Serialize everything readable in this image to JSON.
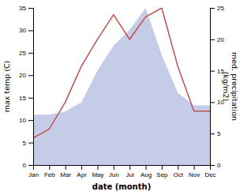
{
  "chart_data": {
    "type": "line",
    "xlabel": "date (month)",
    "ylabel": "max temp (C)",
    "y2label": "med. precipitation\n(kg/m2)",
    "categories": [
      "Jan",
      "Feb",
      "Mar",
      "Apr",
      "May",
      "Jun",
      "Jul",
      "Aug",
      "Sep",
      "Oct",
      "Nov",
      "Dec"
    ],
    "series": [
      {
        "type": "area",
        "axis": "y2",
        "color": "#c5cce8",
        "values": [
          8.0,
          8.0,
          8.5,
          10.0,
          15.0,
          19.0,
          21.5,
          25.0,
          17.5,
          11.5,
          9.5,
          9.5
        ]
      },
      {
        "type": "line",
        "color": "#c0504d",
        "values": [
          6.0,
          8.0,
          14.0,
          22.0,
          28.0,
          33.5,
          28.0,
          33.0,
          35.0,
          22.0,
          12.0,
          12.0
        ]
      }
    ],
    "ylim": [
      0,
      35
    ],
    "yticks": [
      0,
      5,
      10,
      15,
      20,
      25,
      30,
      35
    ],
    "y2lim": [
      0,
      25
    ],
    "y2ticks": [
      0,
      5,
      10,
      15,
      20,
      25
    ],
    "grid": false
  }
}
